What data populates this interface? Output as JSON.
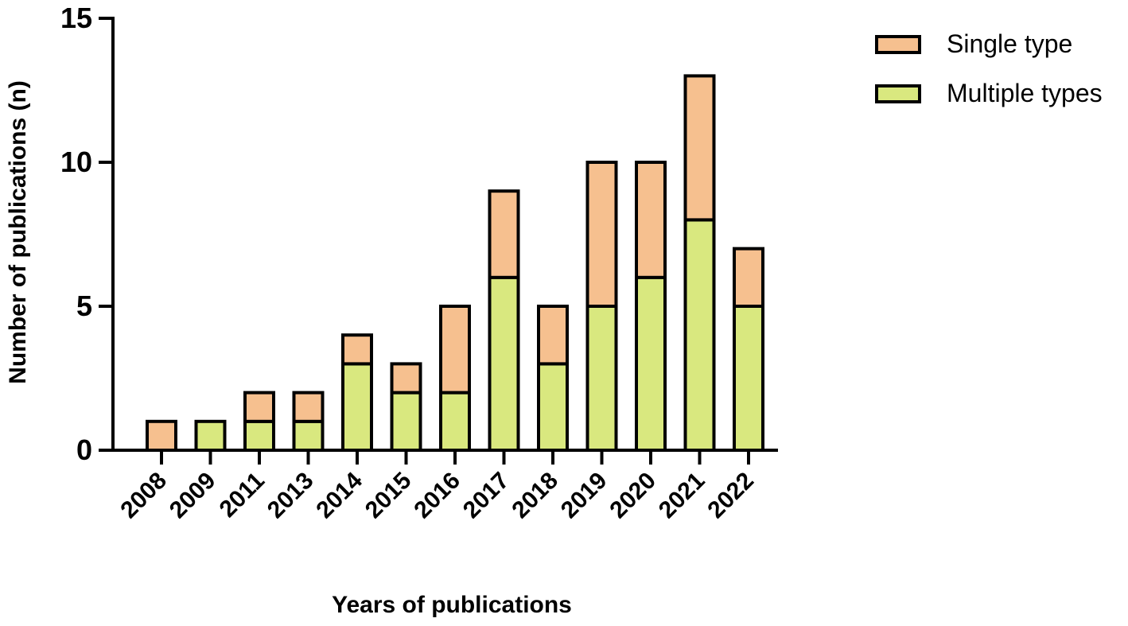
{
  "chart_data": {
    "type": "bar",
    "stacked": true,
    "categories": [
      "2008",
      "2009",
      "2011",
      "2013",
      "2014",
      "2015",
      "2016",
      "2017",
      "2018",
      "2019",
      "2020",
      "2021",
      "2022"
    ],
    "series": [
      {
        "name": "Multiple types",
        "values": [
          0,
          1,
          1,
          1,
          3,
          2,
          2,
          6,
          3,
          5,
          6,
          8,
          5
        ],
        "color": "#d9e87f"
      },
      {
        "name": "Single type",
        "values": [
          1,
          0,
          1,
          1,
          1,
          1,
          3,
          3,
          2,
          5,
          4,
          5,
          2
        ],
        "color": "#f6c08f"
      }
    ],
    "legend_order": [
      "Single type",
      "Multiple types"
    ],
    "legend_position": "top-right",
    "xlabel": "Years of publications",
    "ylabel": "Number of publications (n)",
    "ylim": [
      0,
      15
    ],
    "yticks": [
      0,
      5,
      10,
      15
    ],
    "grid": false
  }
}
